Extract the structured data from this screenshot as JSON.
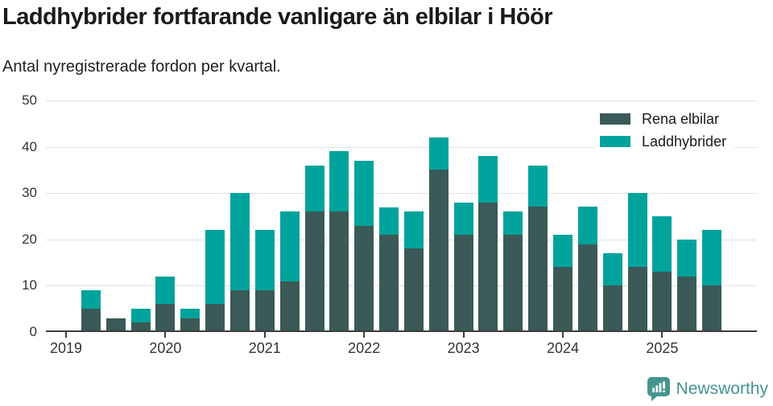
{
  "header": {
    "title": "Laddhybrider fortfarande vanligare än elbilar i Höör",
    "subtitle": "Antal nyregistrerade fordon per kvartal."
  },
  "chart_data": {
    "type": "bar",
    "stacked": true,
    "title": "Laddhybrider fortfarande vanligare än elbilar i Höör",
    "subtitle": "Antal nyregistrerade fordon per kvartal.",
    "xlabel": "",
    "ylabel": "",
    "ylim": [
      0,
      50
    ],
    "yticks": [
      0,
      10,
      20,
      30,
      40,
      50
    ],
    "grid": "horizontal",
    "legend_position": "top-right",
    "categories": [
      "2019-Q1",
      "2019-Q2",
      "2019-Q3",
      "2019-Q4",
      "2020-Q1",
      "2020-Q2",
      "2020-Q3",
      "2020-Q4",
      "2021-Q1",
      "2021-Q2",
      "2021-Q3",
      "2021-Q4",
      "2022-Q1",
      "2022-Q2",
      "2022-Q3",
      "2022-Q4",
      "2023-Q1",
      "2023-Q2",
      "2023-Q3",
      "2023-Q4",
      "2024-Q1",
      "2024-Q2",
      "2024-Q3",
      "2024-Q4",
      "2025-Q1",
      "2025-Q2",
      "2025-Q3"
    ],
    "series": [
      {
        "name": "Rena elbilar",
        "color": "#3b5a57",
        "values": [
          0,
          5,
          3,
          2,
          6,
          3,
          6,
          9,
          9,
          11,
          26,
          26,
          23,
          21,
          18,
          35,
          21,
          28,
          21,
          27,
          14,
          19,
          10,
          14,
          13,
          12,
          10
        ]
      },
      {
        "name": "Laddhybrider",
        "color": "#00a39c",
        "values": [
          0,
          4,
          0,
          3,
          6,
          2,
          16,
          21,
          13,
          15,
          10,
          13,
          14,
          6,
          8,
          7,
          7,
          10,
          5,
          9,
          7,
          8,
          7,
          16,
          12,
          8,
          12
        ]
      }
    ],
    "totals": [
      0,
      9,
      3,
      5,
      12,
      5,
      22,
      30,
      22,
      26,
      36,
      39,
      37,
      27,
      26,
      42,
      28,
      38,
      26,
      36,
      21,
      27,
      17,
      30,
      25,
      20,
      22
    ],
    "xticks": [
      {
        "index": 0,
        "label": "2019"
      },
      {
        "index": 4,
        "label": "2020"
      },
      {
        "index": 8,
        "label": "2021"
      },
      {
        "index": 12,
        "label": "2022"
      },
      {
        "index": 16,
        "label": "2023"
      },
      {
        "index": 20,
        "label": "2024"
      },
      {
        "index": 24,
        "label": "2025"
      }
    ],
    "colors": {
      "axis": "#3d3d3d",
      "grid": "#e2e2e2",
      "tick_text": "#333333"
    }
  },
  "footer": {
    "brand": "Newsworthy",
    "brand_color": "#45958e"
  }
}
